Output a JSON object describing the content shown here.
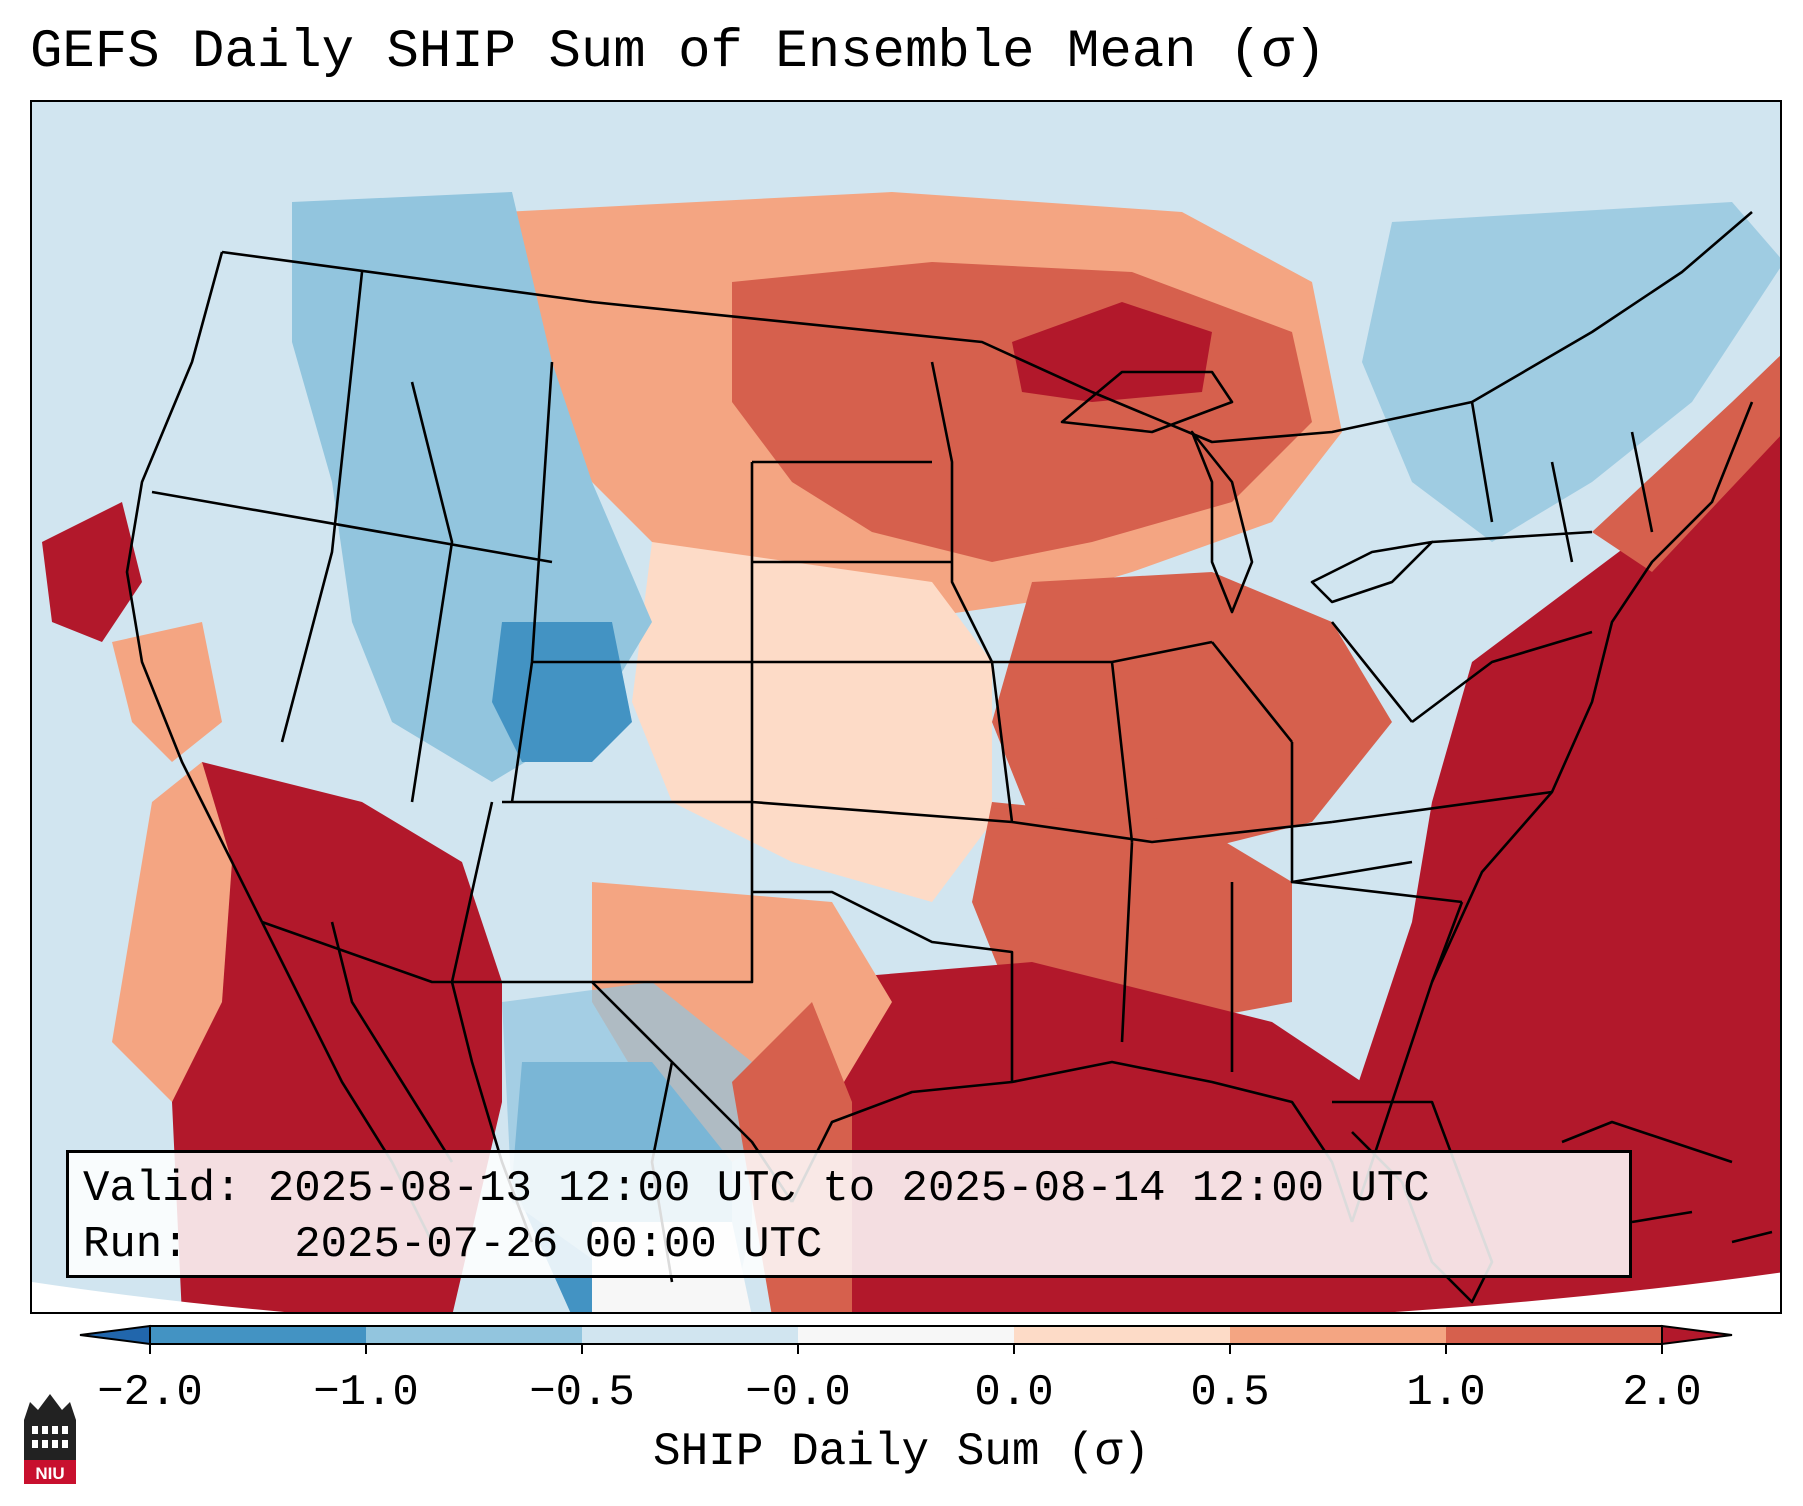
{
  "title": "GEFS Daily SHIP Sum of Ensemble Mean (σ)",
  "info": {
    "valid_label": "Valid:",
    "valid_value": "2025-08-13 12:00 UTC to 2025-08-14 12:00 UTC",
    "run_label": "Run:",
    "run_value": "2025-07-26 00:00 UTC"
  },
  "colorbar": {
    "label": "SHIP Daily Sum (σ)",
    "ticks": [
      "−2.0",
      "−1.0",
      "−0.5",
      "−0.0",
      "0.0",
      "0.5",
      "1.0",
      "2.0"
    ],
    "colors": [
      "#4393c3",
      "#92c5de",
      "#d1e5f0",
      "#f7f7f7",
      "#fddbc7",
      "#f4a582",
      "#d6604d",
      "#b2182b"
    ],
    "extend_low_color": "#2166ac",
    "extend_high_color": "#b2182b"
  },
  "logo": {
    "text": "NIU",
    "icon": "university-tower-icon"
  },
  "map": {
    "projection": "Lambert conformal (CONUS)",
    "field": "SHIP daily sum anomaly",
    "regions": [
      {
        "name": "pacific-northwest",
        "level": "#d1e5f0"
      },
      {
        "name": "intermountain-west",
        "level": "#92c5de"
      },
      {
        "name": "colorado-rockies",
        "level": "#4393c3"
      },
      {
        "name": "northern-plains",
        "level": "#d6604d"
      },
      {
        "name": "upper-midwest",
        "level": "#d6604d"
      },
      {
        "name": "central-plains",
        "level": "#fddbc7"
      },
      {
        "name": "ohio-valley",
        "level": "#d6604d"
      },
      {
        "name": "southeast",
        "level": "#b2182b"
      },
      {
        "name": "gulf-of-mexico",
        "level": "#b2182b"
      },
      {
        "name": "western-atlantic",
        "level": "#b2182b"
      },
      {
        "name": "desert-southwest",
        "level": "#b2182b"
      },
      {
        "name": "northern-mexico-plateau",
        "level": "#4393c3"
      },
      {
        "name": "northeast",
        "level": "#92c5de"
      },
      {
        "name": "eastern-pacific",
        "level": "#d1e5f0"
      }
    ]
  }
}
